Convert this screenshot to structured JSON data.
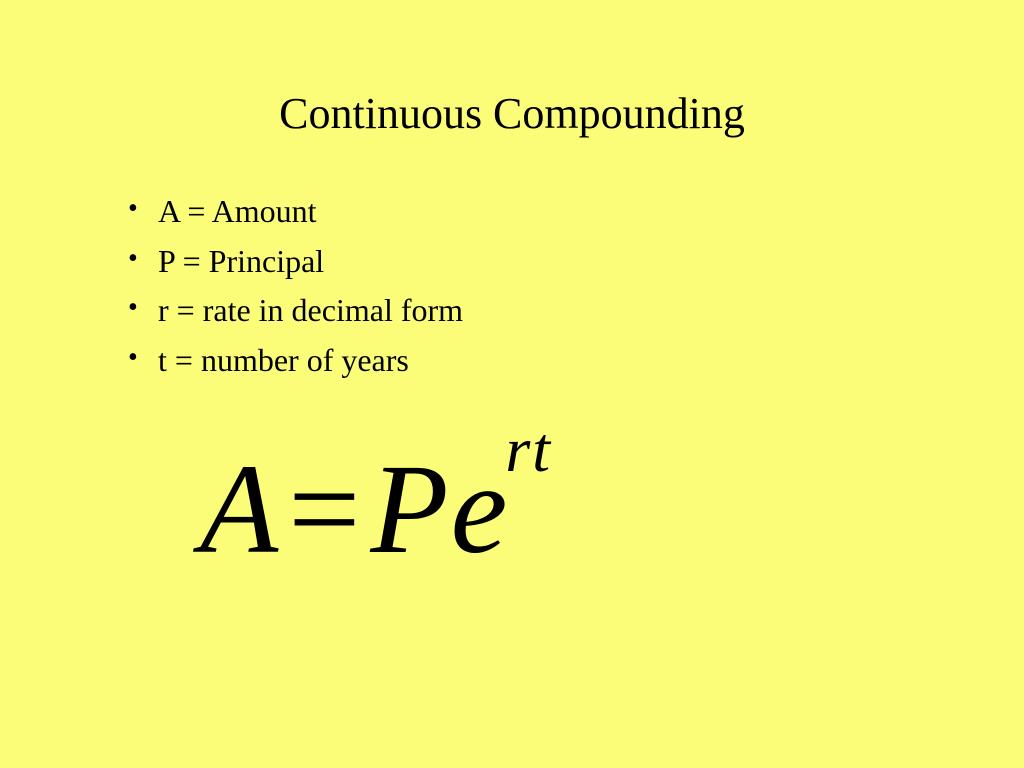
{
  "slide": {
    "background_color": "#fbfd78",
    "text_color": "#000000",
    "font_family": "Times New Roman",
    "title": "Continuous Compounding",
    "title_fontsize": 44,
    "bullets": [
      "A = Amount",
      "P = Principal",
      "r = rate in decimal form",
      "t = number of years"
    ],
    "bullet_fontsize": 32,
    "formula": {
      "lhs": "A",
      "eq": "=",
      "base": "Pe",
      "exponent": "rt",
      "fontsize": 128,
      "exponent_fontsize": 64,
      "italic": true
    }
  }
}
